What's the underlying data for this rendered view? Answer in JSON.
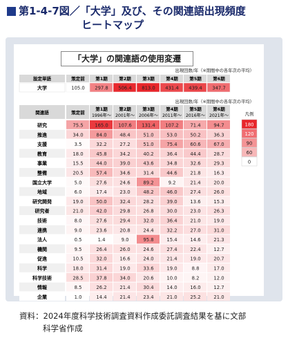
{
  "header": {
    "line1": "第1-4-7図／「大学」及び、その関連語出現頻度",
    "line2": "ヒートマップ"
  },
  "footer": {
    "line1": "資料：2024年度科学技術調査資料作成委託調査結果を基に文部",
    "line2": "科学省作成"
  },
  "chart_data": {
    "type": "heatmap",
    "title": "「大学」の関連語の使用変遷",
    "unit_note": "出現回数/年（※期間中の各年次の平均）",
    "top_table": {
      "row_header": "設定単語",
      "columns": [
        "策定前",
        "第1期",
        "第2期",
        "第3期",
        "第4期",
        "第5期",
        "第6期"
      ],
      "rows": [
        {
          "label": "大学",
          "values": [
            105.0,
            297.8,
            506.4,
            813.0,
            431.4,
            439.4,
            347.7
          ]
        }
      ]
    },
    "main_table": {
      "row_header": "関連語",
      "columns": [
        {
          "name": "策定前",
          "sub": ""
        },
        {
          "name": "第1期",
          "sub": "1996年～"
        },
        {
          "name": "第2期",
          "sub": "2001年～"
        },
        {
          "name": "第3期",
          "sub": "2006年～"
        },
        {
          "name": "第4期",
          "sub": "2011年～"
        },
        {
          "name": "第5期",
          "sub": "2016年～"
        },
        {
          "name": "第6期",
          "sub": "2021年～"
        }
      ],
      "rows": [
        {
          "label": "研究",
          "values": [
            75.5,
            165.0,
            107.6,
            131.4,
            107.2,
            71.4,
            94.7
          ]
        },
        {
          "label": "推進",
          "values": [
            34.0,
            84.0,
            48.4,
            51.0,
            53.0,
            50.2,
            36.3
          ]
        },
        {
          "label": "支援",
          "values": [
            3.5,
            32.2,
            27.2,
            51.0,
            75.4,
            60.6,
            67.0
          ]
        },
        {
          "label": "教育",
          "values": [
            18.0,
            45.8,
            34.2,
            40.2,
            36.4,
            44.4,
            28.7
          ]
        },
        {
          "label": "事業",
          "values": [
            15.5,
            44.0,
            39.0,
            43.6,
            34.8,
            32.6,
            29.3
          ]
        },
        {
          "label": "整備",
          "values": [
            20.5,
            57.4,
            34.6,
            31.4,
            44.6,
            21.8,
            16.3
          ]
        },
        {
          "label": "国立大学",
          "values": [
            5.0,
            27.6,
            24.6,
            89.2,
            9.2,
            21.4,
            20.0
          ]
        },
        {
          "label": "地域",
          "values": [
            6.0,
            17.4,
            23.0,
            48.2,
            46.0,
            27.4,
            26.0
          ]
        },
        {
          "label": "研究開発",
          "values": [
            19.0,
            50.0,
            32.4,
            28.2,
            39.0,
            13.6,
            15.3
          ]
        },
        {
          "label": "研究者",
          "values": [
            21.0,
            42.0,
            29.8,
            26.8,
            30.0,
            23.0,
            26.3
          ]
        },
        {
          "label": "技術",
          "values": [
            8.0,
            27.6,
            29.4,
            32.0,
            36.4,
            21.0,
            19.0
          ]
        },
        {
          "label": "連携",
          "values": [
            9.0,
            23.6,
            20.8,
            24.4,
            32.2,
            27.0,
            31.0
          ]
        },
        {
          "label": "法人",
          "values": [
            0.5,
            1.4,
            9.0,
            95.8,
            15.4,
            14.6,
            21.3
          ]
        },
        {
          "label": "機関",
          "values": [
            9.5,
            26.4,
            26.0,
            24.6,
            27.4,
            22.4,
            12.7
          ]
        },
        {
          "label": "促進",
          "values": [
            10.5,
            32.0,
            16.6,
            24.0,
            21.4,
            19.0,
            20.7
          ]
        },
        {
          "label": "科学",
          "values": [
            18.0,
            31.4,
            19.0,
            33.6,
            19.0,
            8.8,
            17.0
          ]
        },
        {
          "label": "科学技術",
          "values": [
            28.5,
            37.8,
            34.0,
            20.6,
            10.0,
            8.2,
            12.0
          ]
        },
        {
          "label": "情報",
          "values": [
            8.5,
            26.2,
            21.4,
            30.4,
            14.0,
            16.0,
            12.7
          ]
        },
        {
          "label": "企業",
          "values": [
            1.0,
            14.4,
            21.4,
            23.4,
            21.0,
            25.2,
            21.0
          ]
        }
      ]
    },
    "legend": {
      "title": "凡例",
      "ticks": [
        180,
        120,
        90,
        60,
        0
      ]
    },
    "colors": {
      "max": "#e8262b",
      "min": "#ffffff",
      "header_bg": "#d9d9d9",
      "row_band": "#f0f0f0"
    }
  }
}
